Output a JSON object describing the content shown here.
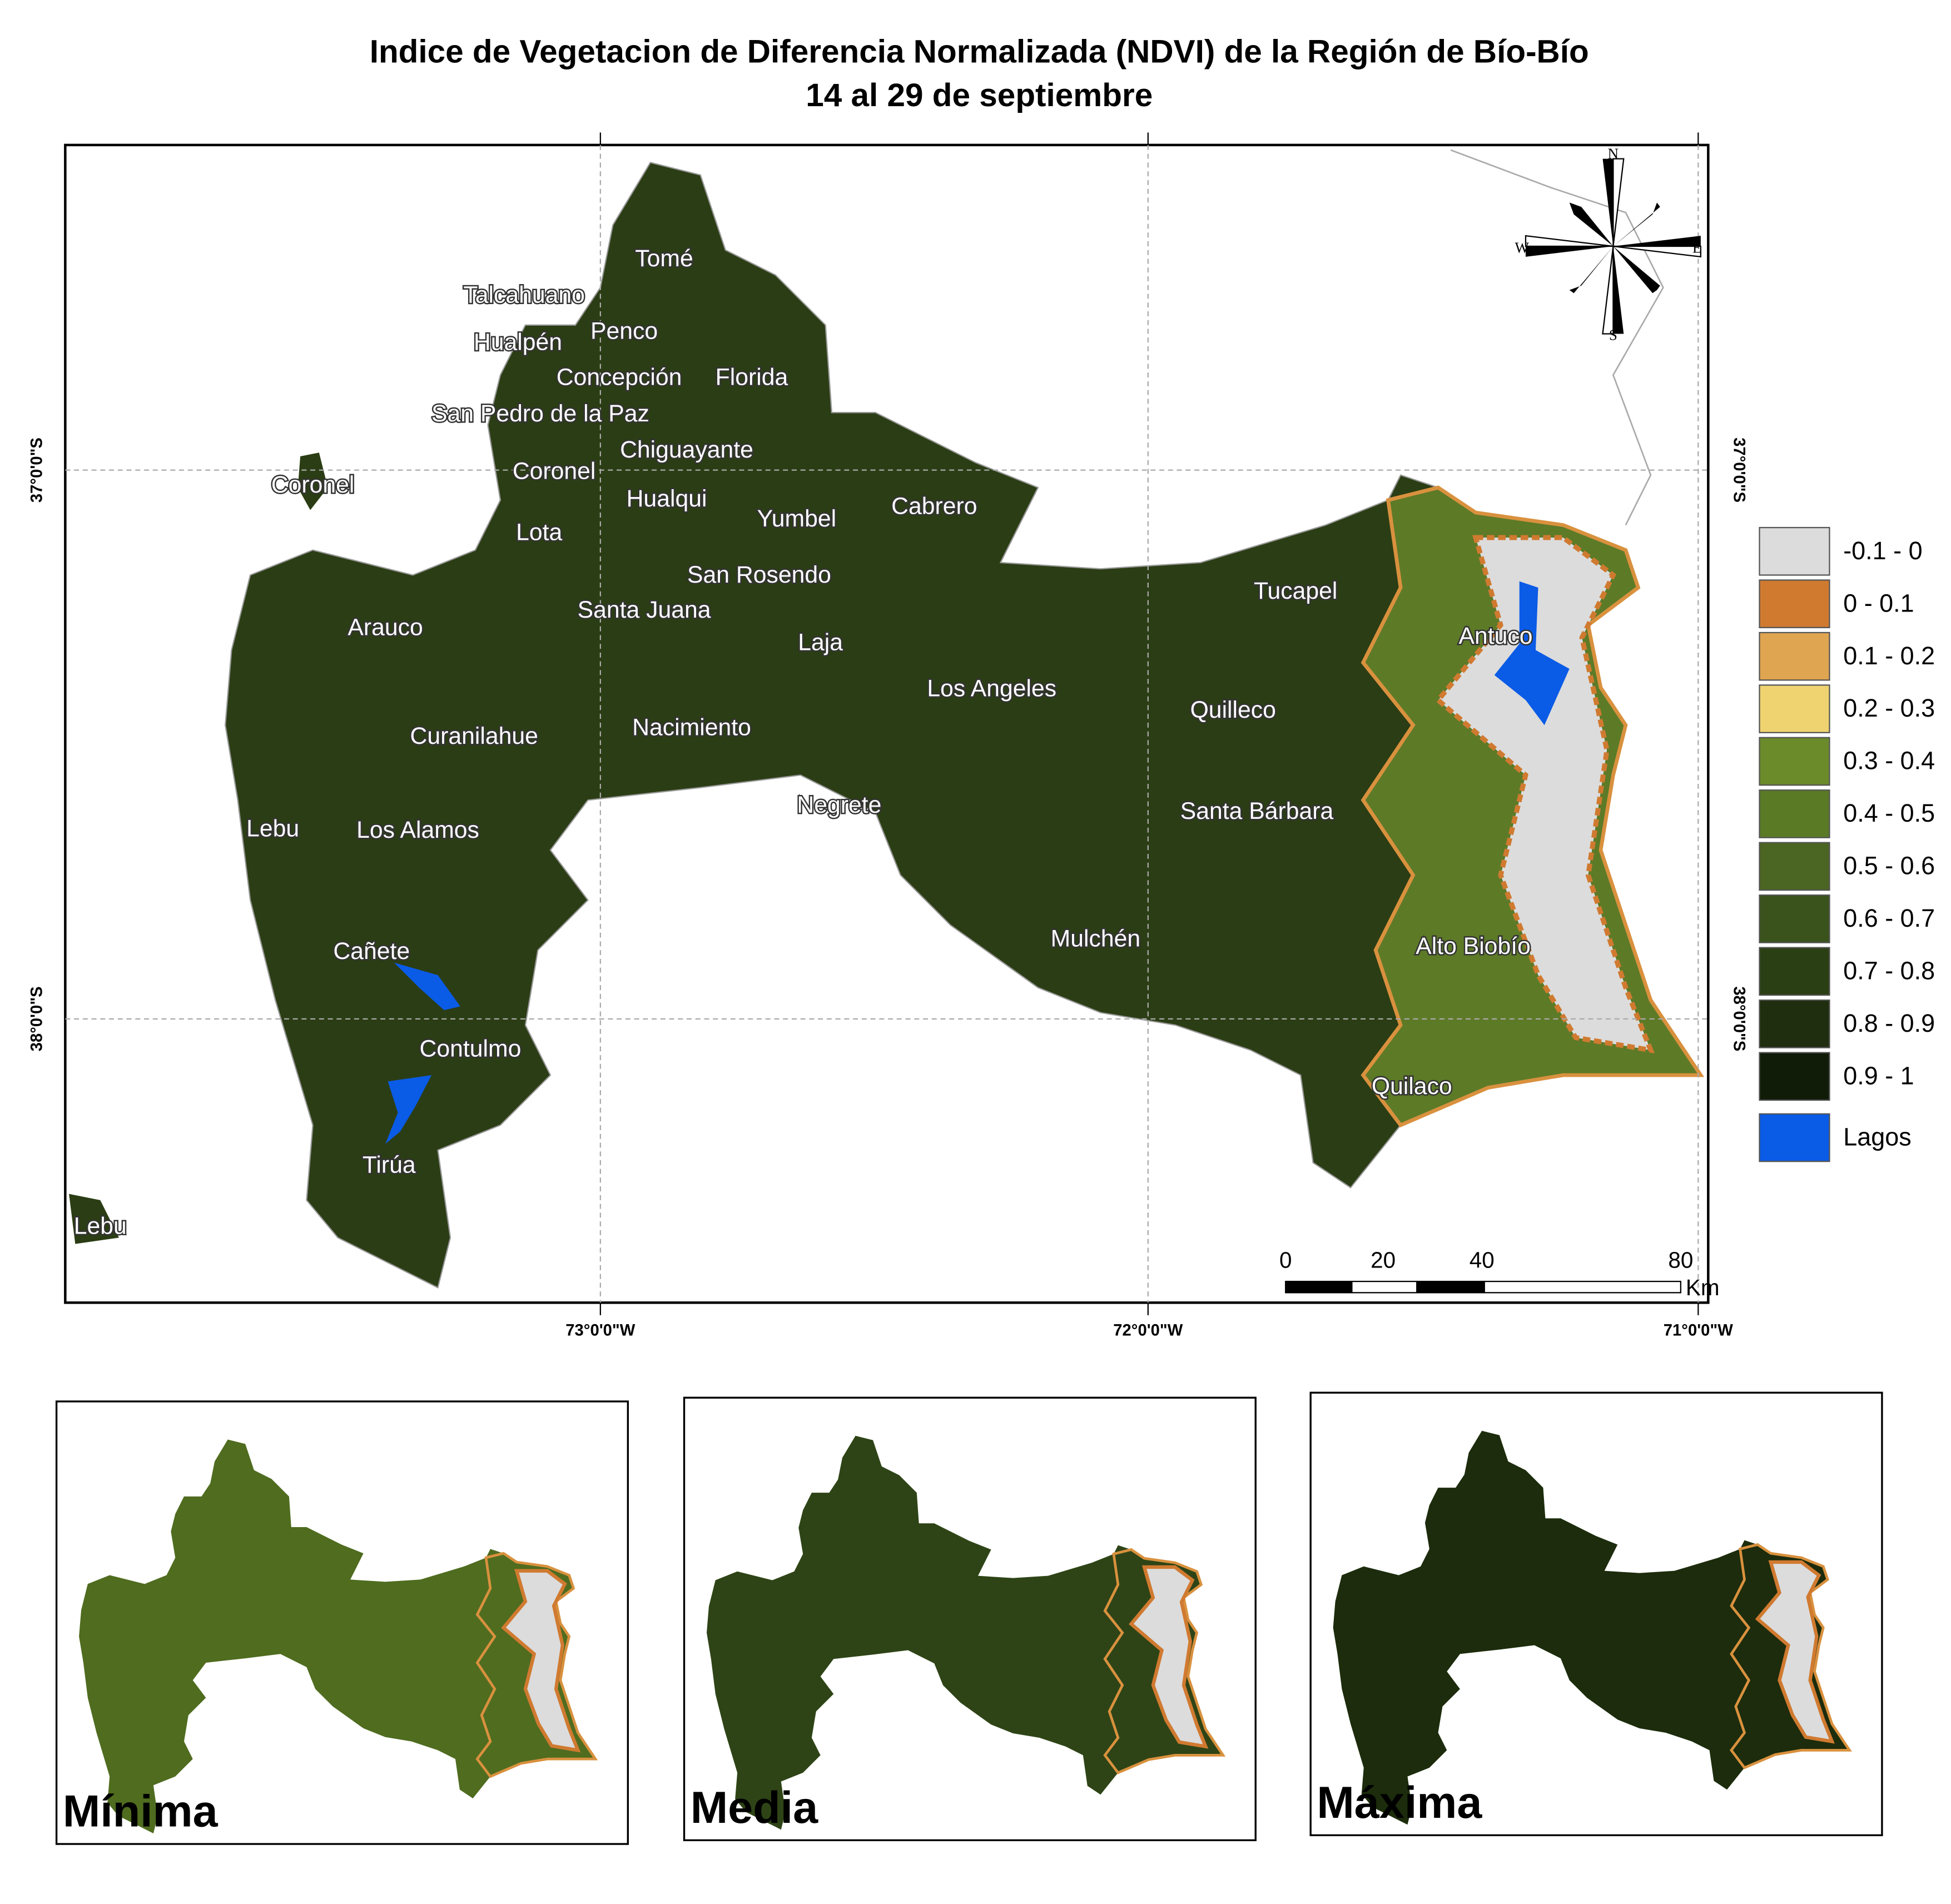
{
  "title": {
    "line1": "Indice de Vegetacion de Diferencia Normalizada (NDVI) de la Región de Bío-Bío",
    "line2": "14 al 29 de septiembre"
  },
  "map": {
    "labels": [
      "Tomé",
      "Talcahuano",
      "Hualpén",
      "Penco",
      "Concepción",
      "Florida",
      "San Pedro de la Paz",
      "Chiguayante",
      "Coronel",
      "Coronel",
      "Hualqui",
      "Yumbel",
      "Cabrero",
      "Lota",
      "San Rosendo",
      "Santa Juana",
      "Tucapel",
      "Arauco",
      "Antuco",
      "Laja",
      "Los Angeles",
      "Quilleco",
      "Nacimiento",
      "Curanilahue",
      "Negrete",
      "Santa Bárbara",
      "Lebu",
      "Los Alamos",
      "Mulchén",
      "Alto Biobío",
      "Cañete",
      "Contulmo",
      "Quilaco",
      "Tirúa",
      "Lebu"
    ],
    "longitudes": [
      "73°0'0\"W",
      "72°0'0\"W",
      "71°0'0\"W"
    ],
    "latitudes": [
      "37°0'0\"S",
      "38°0'0\"S"
    ],
    "compass": {
      "n": "N",
      "e": "E",
      "s": "S",
      "w": "W"
    },
    "scale_bar": {
      "ticks": [
        "0",
        "20",
        "40",
        "80"
      ],
      "unit": "Km"
    }
  },
  "legend": [
    {
      "label": "-0.1 - 0",
      "color": "#dcdcdc"
    },
    {
      "label": "0 - 0.1",
      "color": "#d07a30"
    },
    {
      "label": "0.1 - 0.2",
      "color": "#e0a550"
    },
    {
      "label": "0.2 - 0.3",
      "color": "#efd371"
    },
    {
      "label": "0.3 - 0.4",
      "color": "#6b8a2a"
    },
    {
      "label": "0.4 - 0.5",
      "color": "#5a7a26"
    },
    {
      "label": "0.5 - 0.6",
      "color": "#4b6522"
    },
    {
      "label": "0.6 - 0.7",
      "color": "#3a521b"
    },
    {
      "label": "0.7 - 0.8",
      "color": "#2b3f14"
    },
    {
      "label": "0.8 - 0.9",
      "color": "#1e2e0e"
    },
    {
      "label": "0.9 - 1",
      "color": "#101c08"
    },
    {
      "label": "Lagos",
      "color": "#0a5be6"
    }
  ],
  "insets": [
    {
      "label": "Mínima",
      "color": "#4f6c1f"
    },
    {
      "label": "Media",
      "color": "#2e4416"
    },
    {
      "label": "Máxima",
      "color": "#1c2c0c"
    }
  ]
}
